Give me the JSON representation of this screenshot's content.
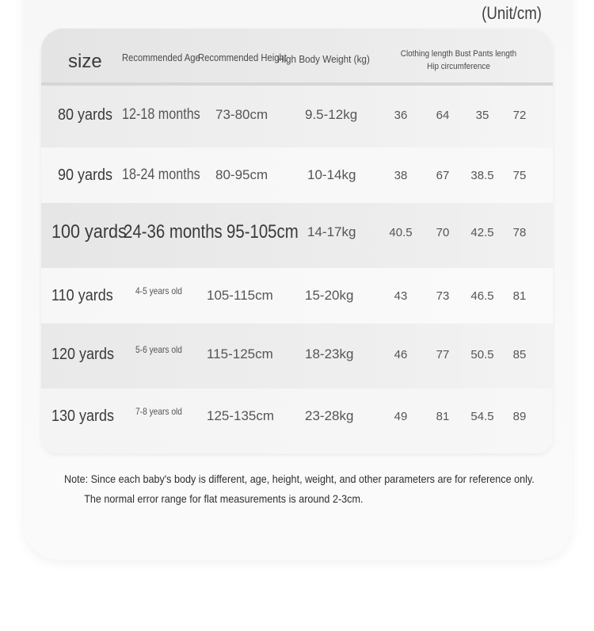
{
  "unit_label": "(Unit/cm)",
  "header": {
    "size": "size",
    "age": "Recommended Age",
    "height": "Recommended Height",
    "weight": "High Body Weight (kg)",
    "measurements": "Clothing length Bust Pants length Hip circumference"
  },
  "rows": [
    {
      "size": "80 yards",
      "age": "12-18 months",
      "height": "73-80cm",
      "weight": "9.5-12kg",
      "clothing_length": "36",
      "bust": "64",
      "pants_length": "35",
      "hip": "72"
    },
    {
      "size": "90 yards",
      "age": "18-24 months",
      "height": "80-95cm",
      "weight": "10-14kg",
      "clothing_length": "38",
      "bust": "67",
      "pants_length": "38.5",
      "hip": "75"
    },
    {
      "size": "100 yards",
      "age": "24-36 months",
      "height": "95-105cm",
      "weight": "14-17kg",
      "clothing_length": "40.5",
      "bust": "70",
      "pants_length": "42.5",
      "hip": "78"
    },
    {
      "size": "110 yards",
      "age": "4-5 years old",
      "height": "105-115cm",
      "weight": "15-20kg",
      "clothing_length": "43",
      "bust": "73",
      "pants_length": "46.5",
      "hip": "81"
    },
    {
      "size": "120 yards",
      "age": "5-6 years old",
      "height": "115-125cm",
      "weight": "18-23kg",
      "clothing_length": "46",
      "bust": "77",
      "pants_length": "50.5",
      "hip": "85"
    },
    {
      "size": "130 yards",
      "age": "7-8 years old",
      "height": "125-135cm",
      "weight": "23-28kg",
      "clothing_length": "49",
      "bust": "81",
      "pants_length": "54.5",
      "hip": "89"
    }
  ],
  "note": {
    "line1": "Note: Since each baby's body is different, age, height, weight, and other parameters are for reference only.",
    "line2": "The normal error range for flat measurements is around 2-3cm."
  }
}
